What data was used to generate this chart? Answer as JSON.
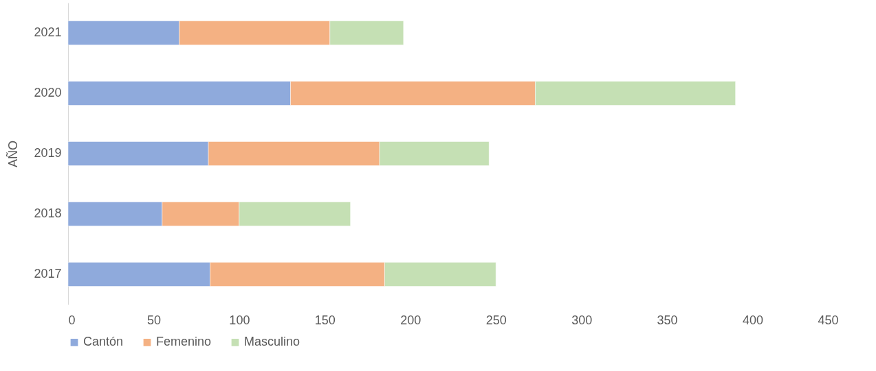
{
  "chart_data": {
    "type": "bar",
    "orientation": "horizontal",
    "stacked": true,
    "ylabel": "AÑO",
    "categories": [
      "2021",
      "2020",
      "2019",
      "2018",
      "2017"
    ],
    "series": [
      {
        "name": "Cantón",
        "color": "#8faadc",
        "values": [
          65,
          130,
          82,
          55,
          83
        ]
      },
      {
        "name": "Femenino",
        "color": "#f4b183",
        "values": [
          88,
          143,
          100,
          45,
          102
        ]
      },
      {
        "name": "Masculino",
        "color": "#c5e0b4",
        "values": [
          43,
          117,
          64,
          65,
          65
        ]
      }
    ],
    "xlim": [
      0,
      450
    ],
    "xticks": [
      0,
      50,
      100,
      150,
      200,
      250,
      300,
      350,
      400,
      450
    ],
    "grid": false,
    "legend": "bottom"
  }
}
